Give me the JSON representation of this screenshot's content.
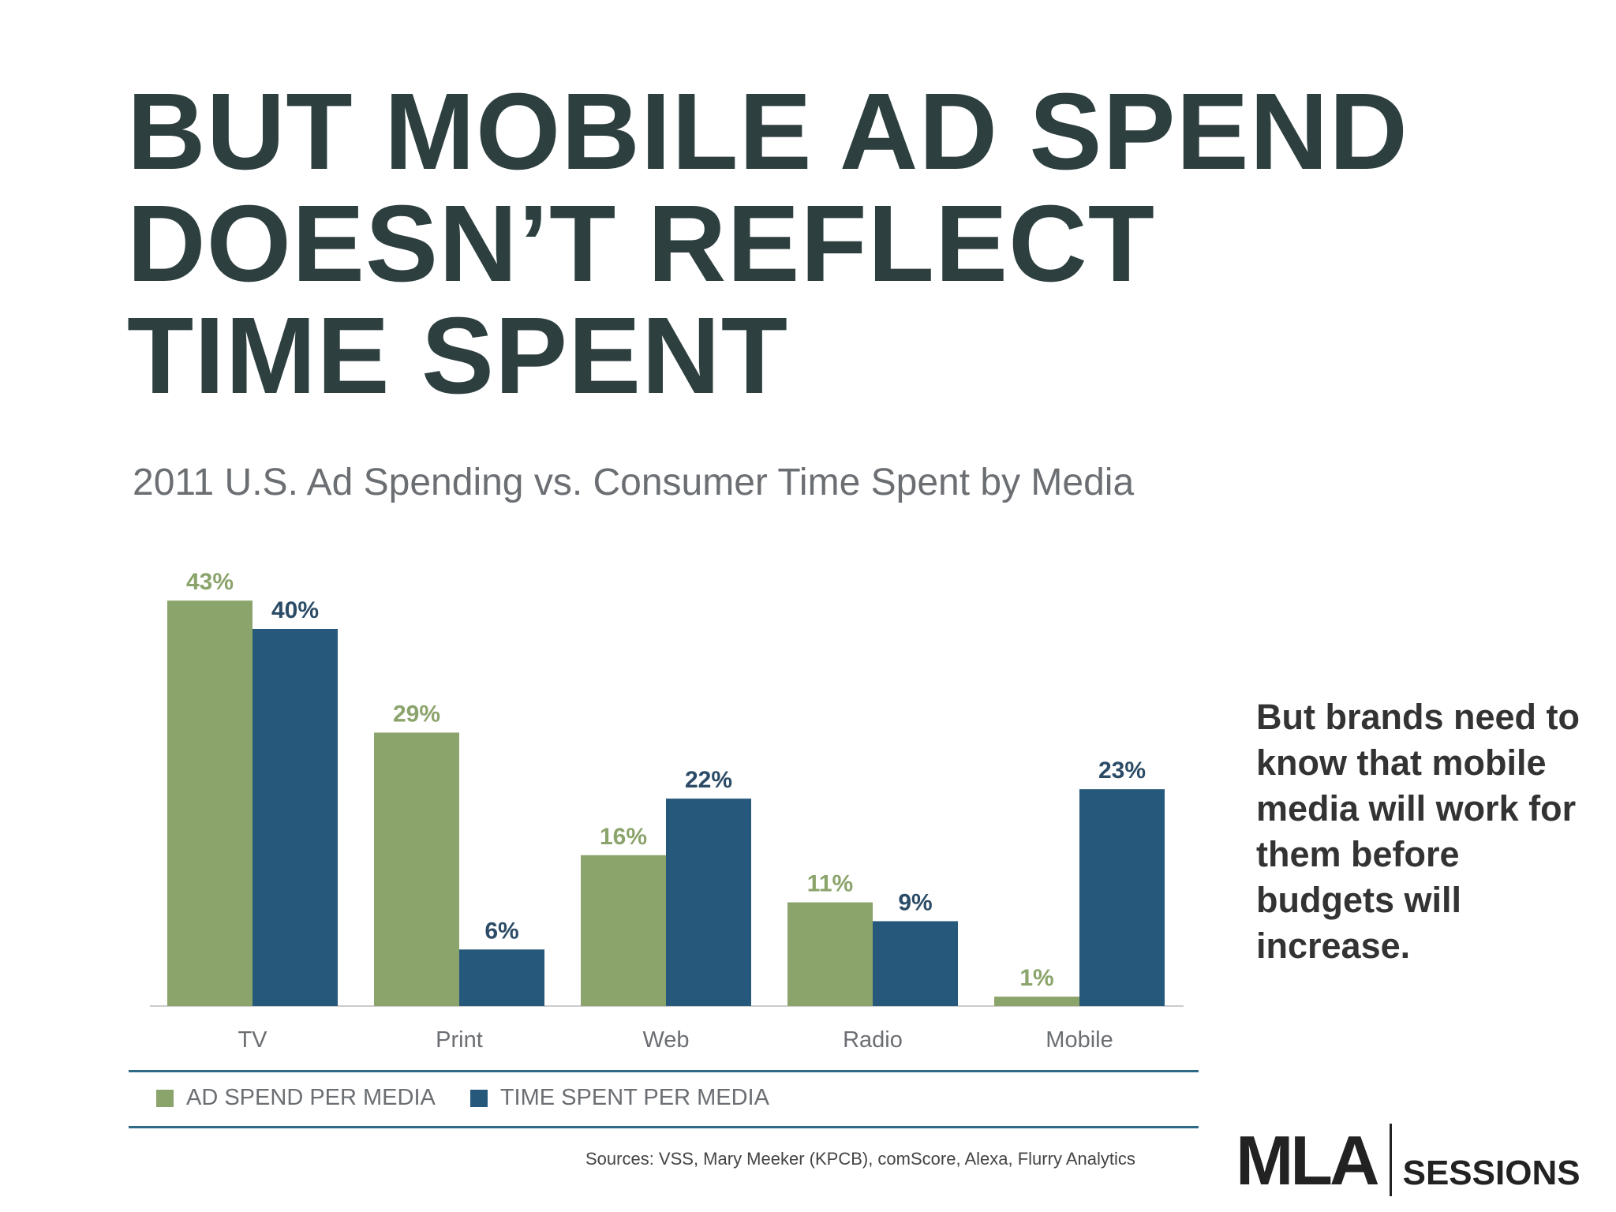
{
  "slide": {
    "title_lines": [
      "BUT MOBILE AD SPEND",
      "DOESN’T REFLECT",
      "TIME SPENT"
    ],
    "side_note": "But brands need to know that mobile media will work for them before budgets will increase.",
    "sources": "Sources: VSS, Mary Meeker (KPCB), comScore, Alexa, Flurry Analytics",
    "logo": {
      "mark": "MLA",
      "text": "SESSIONS"
    }
  },
  "colors": {
    "ad_spend": "#8ba46b",
    "time_spent": "#26587c",
    "ad_spend_label": "#8ba46b",
    "time_spent_label": "#2b4b66",
    "title": "#2e3f40",
    "axis": "#cccccc",
    "rule": "#2f6b87"
  },
  "chart_data": {
    "type": "bar",
    "title": "2011 U.S. Ad Spending vs. Consumer Time Spent by Media",
    "categories": [
      "TV",
      "Print",
      "Web",
      "Radio",
      "Mobile"
    ],
    "series": [
      {
        "name": "AD SPEND PER MEDIA",
        "values": [
          43,
          29,
          16,
          11,
          1
        ],
        "labels": [
          "43%",
          "29%",
          "16%",
          "11%",
          "1%"
        ]
      },
      {
        "name": "TIME SPENT PER MEDIA",
        "values": [
          40,
          6,
          22,
          9,
          23
        ],
        "labels": [
          "40%",
          "6%",
          "22%",
          "9%",
          "23%"
        ]
      }
    ],
    "value_unit": "%",
    "ylim": [
      0,
      45
    ],
    "grid": false,
    "legend_position": "bottom-left"
  }
}
